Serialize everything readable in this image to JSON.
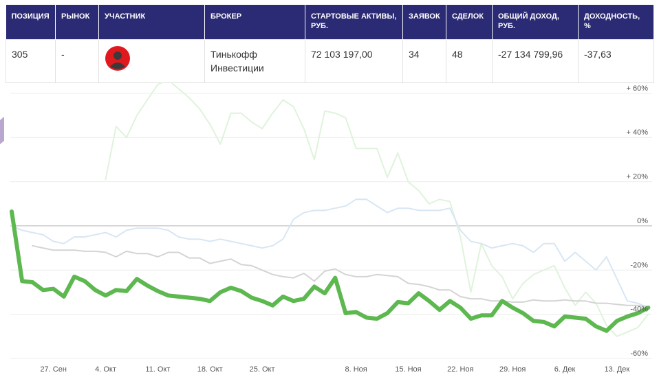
{
  "table": {
    "header": [
      "ПОЗИЦИЯ",
      "РЫНОК",
      "УЧАСТНИК",
      "БРОКЕР",
      "СТАРТОВЫЕ АКТИВЫ, РУБ.",
      "ЗАЯВОК",
      "СДЕЛОК",
      "ОБЩИЙ ДОХОД, РУБ.",
      "ДОХОДНОСТЬ, %"
    ],
    "row": {
      "position": "305",
      "market": "-",
      "broker": "Тинькофф Инвестиции",
      "start_assets": "72 103 197,00",
      "orders": "34",
      "trades": "48",
      "income": "-27 134 799,96",
      "yield": "-37,63"
    }
  },
  "chart_data": {
    "type": "line",
    "categories": [
      null,
      null,
      null,
      null,
      "27. Сен",
      null,
      null,
      null,
      null,
      "4. Окт",
      null,
      null,
      null,
      null,
      "11. Окт",
      null,
      null,
      null,
      null,
      "18. Окт",
      null,
      null,
      null,
      null,
      "25. Окт",
      null,
      null,
      null,
      null,
      null,
      null,
      null,
      null,
      "8. Ноя",
      null,
      null,
      null,
      null,
      "15. Ноя",
      null,
      null,
      null,
      null,
      "22. Ноя",
      null,
      null,
      null,
      null,
      "29. Ноя",
      null,
      null,
      null,
      null,
      "6. Дек",
      null,
      null,
      null,
      null,
      "13. Дек",
      null,
      null,
      null
    ],
    "ylim": [
      -60,
      64
    ],
    "yticks": [
      {
        "value": 60,
        "label": "+ 60%"
      },
      {
        "value": 40,
        "label": "+ 40%"
      },
      {
        "value": 20,
        "label": "+ 20%"
      },
      {
        "value": 0,
        "label": "0%"
      },
      {
        "value": -20,
        "label": "-20%"
      },
      {
        "value": -40,
        "label": "-40%"
      },
      {
        "value": -60,
        "label": "-60%"
      }
    ],
    "grid": true,
    "series": [
      {
        "color": "#dff3dc",
        "width": 2,
        "values": [
          null,
          null,
          null,
          null,
          null,
          null,
          null,
          null,
          null,
          21,
          45,
          40,
          50,
          57,
          64,
          66,
          62,
          58,
          53,
          46,
          37,
          51,
          51,
          47,
          44,
          51,
          57,
          54,
          44,
          30,
          52,
          51,
          49,
          35,
          35,
          35,
          22,
          33,
          20,
          16,
          10,
          12,
          11,
          -5,
          -30,
          -8,
          -18,
          -23,
          -33,
          -26,
          -22,
          -20,
          -18,
          -28,
          -36,
          -30,
          -35,
          -45,
          -50,
          -48,
          -46,
          -40
        ]
      },
      {
        "color": "#d8e6f4",
        "width": 2,
        "values": [
          0,
          -2,
          -3,
          -4,
          -7,
          -8,
          -5,
          -5,
          -4,
          -3,
          -5,
          -2,
          -1,
          -1,
          -1,
          -2,
          -5,
          -6,
          -6,
          -7,
          -6,
          -7,
          -8,
          -9,
          -10,
          -9,
          -6,
          3,
          6,
          7,
          7,
          8,
          9,
          12,
          12,
          9,
          6,
          8,
          8,
          7,
          7,
          7,
          8,
          -2,
          -7,
          -8,
          -10,
          -9,
          -8,
          -9,
          -12,
          -8,
          -8,
          -16,
          -12,
          -16,
          -20,
          -14,
          -24,
          -34,
          -35,
          -37
        ]
      },
      {
        "color": "#d4d4d4",
        "width": 2,
        "values": [
          null,
          null,
          -9,
          -10,
          -11,
          -11,
          -11,
          -11.5,
          -11.5,
          -12,
          -14,
          -11.5,
          -12.5,
          -12.5,
          -14,
          -12,
          -12,
          -14.5,
          -14.5,
          -17,
          -16,
          -15,
          -17.5,
          -18,
          -20,
          -22,
          -23,
          -23.5,
          -21.5,
          -25,
          -20.5,
          -19.5,
          -22,
          -23,
          -23,
          -22,
          -22.5,
          -23,
          -26,
          -26.5,
          -27.5,
          -29,
          -29,
          -32,
          -33,
          -33,
          -34,
          -34,
          -34.5,
          -34.5,
          -33.5,
          -34,
          -34,
          -33.5,
          -34,
          -34,
          -35,
          -35,
          -35.5,
          -36,
          -36,
          -36.5
        ]
      },
      {
        "color": "#5cb84f",
        "width": 6,
        "values": [
          6.5,
          -25,
          -25.5,
          -29,
          -28.5,
          -32,
          -23,
          -25,
          -29,
          -31.5,
          -29,
          -29.5,
          -24,
          -27,
          -29.5,
          -31.5,
          -32,
          -32.5,
          -33,
          -34,
          -30,
          -28,
          -29.5,
          -32.5,
          -34,
          -36,
          -32,
          -34,
          -33,
          -27.5,
          -30.5,
          -23.5,
          -39.5,
          -39,
          -41.5,
          -42,
          -39.5,
          -34.5,
          -35,
          -30.5,
          -34,
          -38,
          -34,
          -37,
          -42,
          -40.5,
          -40.5,
          -34,
          -37,
          -39.5,
          -43,
          -43.5,
          -45.5,
          -41,
          -41.5,
          -42,
          -45.5,
          -47.5,
          -43,
          -41,
          -39.5,
          -37
        ]
      }
    ]
  }
}
